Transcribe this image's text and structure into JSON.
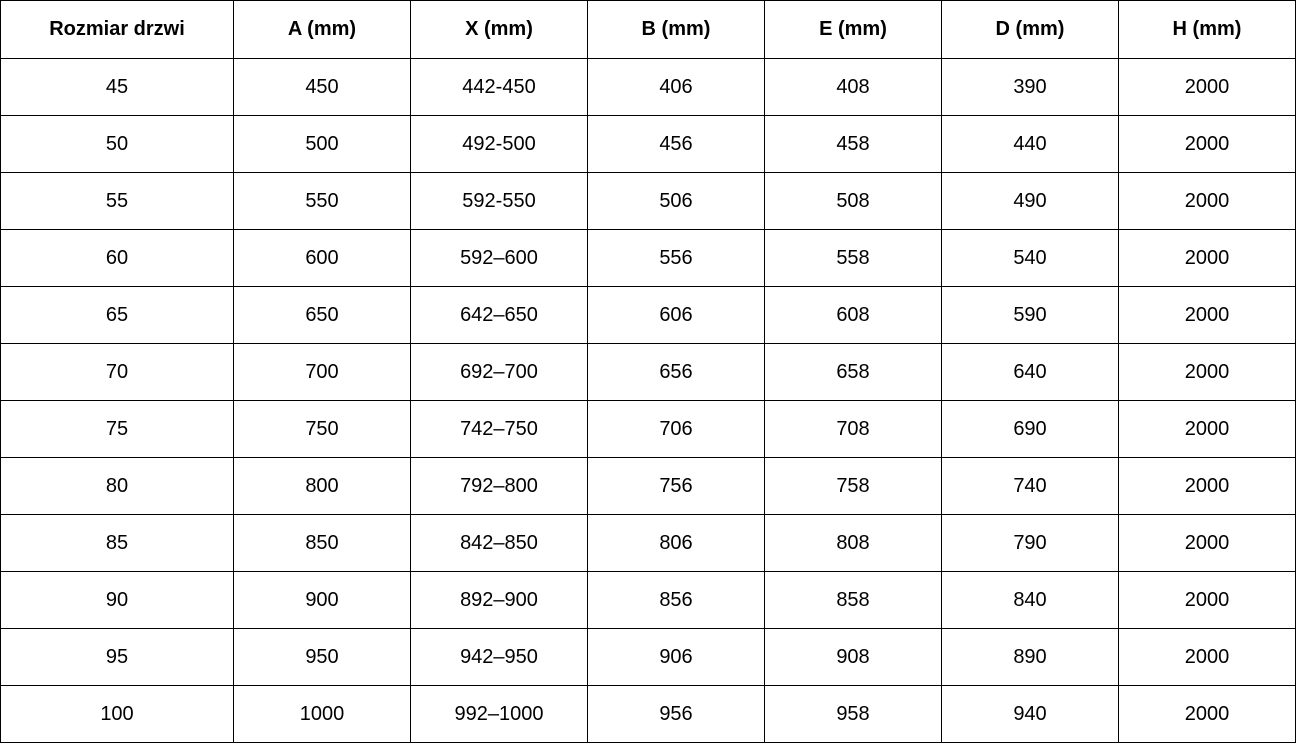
{
  "table": {
    "columns": [
      "Rozmiar drzwi",
      "A (mm)",
      "X (mm)",
      "B (mm)",
      "E (mm)",
      "D (mm)",
      "H (mm)"
    ],
    "rows": [
      [
        "45",
        "450",
        "442-450",
        "406",
        "408",
        "390",
        "2000"
      ],
      [
        "50",
        "500",
        "492-500",
        "456",
        "458",
        "440",
        "2000"
      ],
      [
        "55",
        "550",
        "592-550",
        "506",
        "508",
        "490",
        "2000"
      ],
      [
        "60",
        "600",
        "592–600",
        "556",
        "558",
        "540",
        "2000"
      ],
      [
        "65",
        "650",
        "642–650",
        "606",
        "608",
        "590",
        "2000"
      ],
      [
        "70",
        "700",
        "692–700",
        "656",
        "658",
        "640",
        "2000"
      ],
      [
        "75",
        "750",
        "742–750",
        "706",
        "708",
        "690",
        "2000"
      ],
      [
        "80",
        "800",
        "792–800",
        "756",
        "758",
        "740",
        "2000"
      ],
      [
        "85",
        "850",
        "842–850",
        "806",
        "808",
        "790",
        "2000"
      ],
      [
        "90",
        "900",
        "892–900",
        "856",
        "858",
        "840",
        "2000"
      ],
      [
        "95",
        "950",
        "942–950",
        "906",
        "908",
        "890",
        "2000"
      ],
      [
        "100",
        "1000",
        "992–1000",
        "956",
        "958",
        "940",
        "2000"
      ]
    ]
  },
  "colors": {
    "border": "#000000",
    "text": "#000000",
    "background": "#ffffff"
  }
}
